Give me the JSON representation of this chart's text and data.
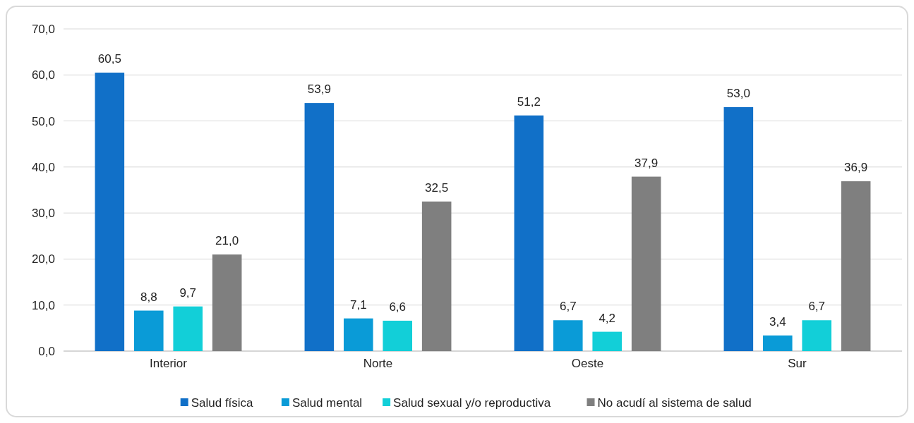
{
  "chart_data": {
    "type": "bar",
    "categories": [
      "Interior",
      "Norte",
      "Oeste",
      "Sur"
    ],
    "series": [
      {
        "name": "Salud física",
        "color": "#1170c8",
        "values": [
          60.5,
          53.9,
          51.2,
          53.0
        ],
        "value_labels": [
          "60,5",
          "53,9",
          "51,2",
          "53,0"
        ]
      },
      {
        "name": "Salud mental",
        "color": "#0a9bd7",
        "values": [
          8.8,
          7.1,
          6.7,
          3.4
        ],
        "value_labels": [
          "8,8",
          "7,1",
          "6,7",
          "3,4"
        ]
      },
      {
        "name": "Salud sexual y/o reproductiva",
        "color": "#12cfd8",
        "values": [
          9.7,
          6.6,
          4.2,
          6.7
        ],
        "value_labels": [
          "9,7",
          "6,6",
          "4,2",
          "6,7"
        ]
      },
      {
        "name": "No acudí al sistema de salud",
        "color": "#7f7f7f",
        "values": [
          21.0,
          32.5,
          37.9,
          36.9
        ],
        "value_labels": [
          "21,0",
          "32,5",
          "37,9",
          "36,9"
        ]
      }
    ],
    "ylim": [
      0,
      70
    ],
    "yticks": [
      {
        "value": 0,
        "label": "0,0"
      },
      {
        "value": 10,
        "label": "10,0"
      },
      {
        "value": 20,
        "label": "20,0"
      },
      {
        "value": 30,
        "label": "30,0"
      },
      {
        "value": 40,
        "label": "40,0"
      },
      {
        "value": 50,
        "label": "50,0"
      },
      {
        "value": 60,
        "label": "60,0"
      },
      {
        "value": 70,
        "label": "70,0"
      }
    ],
    "grid": "y",
    "legend": "bottom"
  }
}
